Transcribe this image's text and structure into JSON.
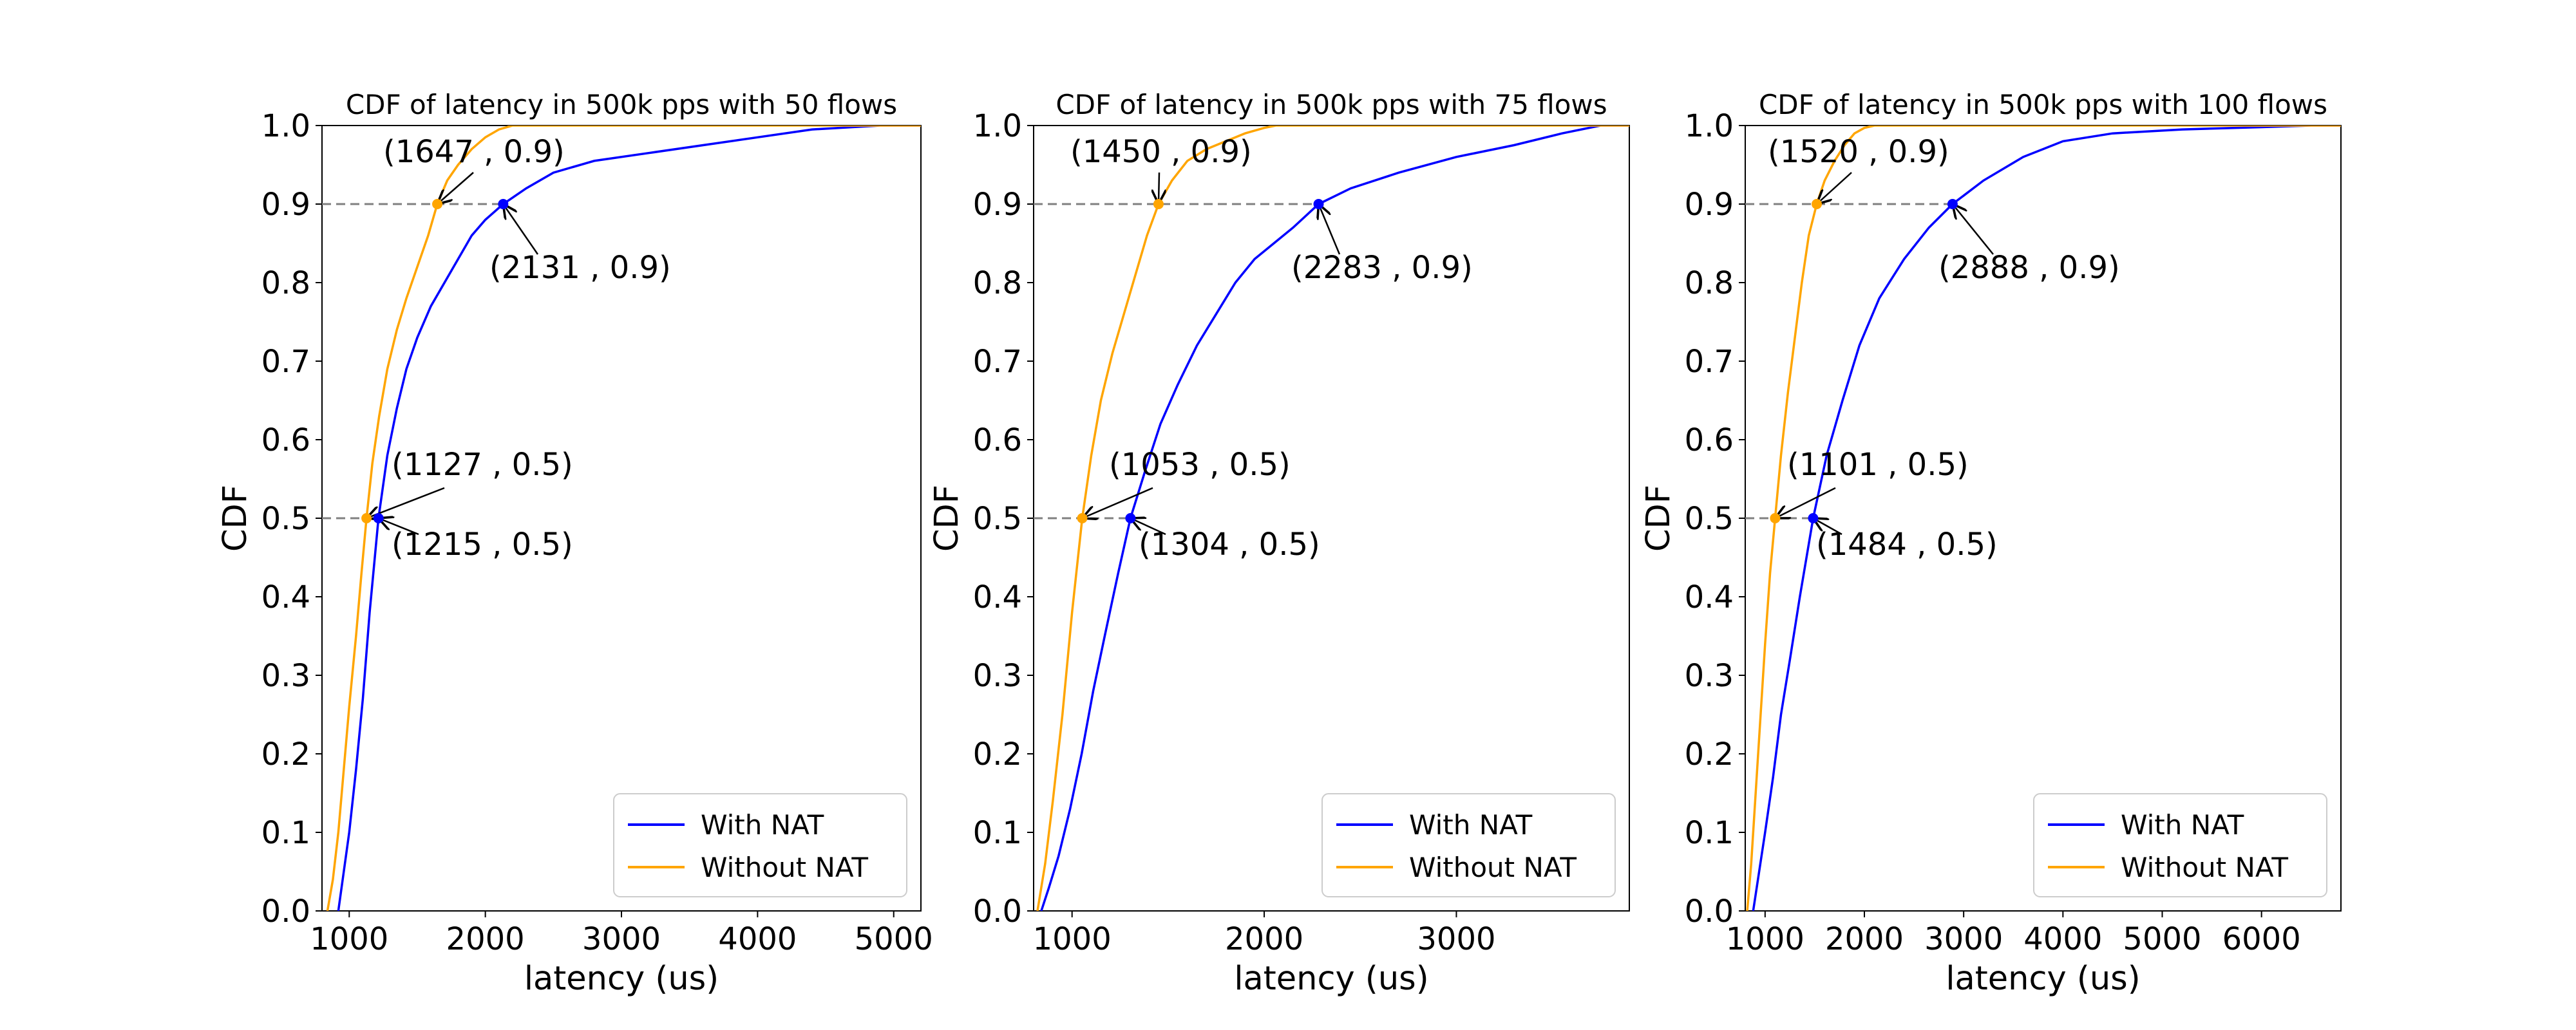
{
  "figure": {
    "background": "#ffffff",
    "colors": {
      "with_nat": "#0000ff",
      "without_nat": "#ffa500",
      "reference_line": "#808080",
      "annotation_arrow": "#000000",
      "axes": "#000000",
      "legend_border": "#cccccc"
    }
  },
  "chart_data": [
    {
      "type": "line",
      "title": "CDF of latency in 500k pps with 50 flows",
      "xlabel": "latency (us)",
      "ylabel": "CDF",
      "xlim": [
        800,
        5200
      ],
      "ylim": [
        0.0,
        1.0
      ],
      "xticks": [
        1000,
        2000,
        3000,
        4000,
        5000
      ],
      "yticks": [
        0.0,
        0.1,
        0.2,
        0.3,
        0.4,
        0.5,
        0.6,
        0.7,
        0.8,
        0.9,
        1.0
      ],
      "grid": false,
      "legend_position": "lower right",
      "reference_lines": [
        {
          "y": 0.5,
          "x_end": 1215
        },
        {
          "y": 0.9,
          "x_end": 2131
        }
      ],
      "series": [
        {
          "name": "With NAT",
          "color": "#0000ff",
          "x": [
            920,
            960,
            1000,
            1050,
            1100,
            1150,
            1215,
            1280,
            1350,
            1420,
            1500,
            1600,
            1700,
            1800,
            1900,
            2000,
            2131,
            2300,
            2500,
            2800,
            3200,
            3600,
            4000,
            4400,
            4900
          ],
          "y": [
            0.0,
            0.05,
            0.1,
            0.18,
            0.27,
            0.38,
            0.5,
            0.58,
            0.64,
            0.69,
            0.73,
            0.77,
            0.8,
            0.83,
            0.86,
            0.88,
            0.9,
            0.92,
            0.94,
            0.955,
            0.965,
            0.975,
            0.985,
            0.995,
            1.0
          ]
        },
        {
          "name": "Without NAT",
          "color": "#ffa500",
          "x": [
            840,
            880,
            920,
            960,
            1000,
            1050,
            1090,
            1127,
            1170,
            1220,
            1280,
            1350,
            1420,
            1500,
            1580,
            1647,
            1720,
            1800,
            1900,
            2000,
            2100,
            2200
          ],
          "y": [
            0.0,
            0.04,
            0.1,
            0.18,
            0.26,
            0.35,
            0.43,
            0.5,
            0.57,
            0.63,
            0.69,
            0.74,
            0.78,
            0.82,
            0.86,
            0.9,
            0.93,
            0.95,
            0.97,
            0.985,
            0.995,
            1.0
          ]
        }
      ],
      "annotations": [
        {
          "text": "(1647 , 0.9)",
          "x": 1647,
          "y": 0.9,
          "color": "#ffa500"
        },
        {
          "text": "(2131 , 0.9)",
          "x": 2131,
          "y": 0.9,
          "color": "#0000ff"
        },
        {
          "text": "(1127 , 0.5)",
          "x": 1127,
          "y": 0.5,
          "color": "#ffa500"
        },
        {
          "text": "(1215 , 0.5)",
          "x": 1215,
          "y": 0.5,
          "color": "#0000ff"
        }
      ]
    },
    {
      "type": "line",
      "title": "CDF of latency in 500k pps with 75 flows",
      "xlabel": "latency (us)",
      "ylabel": "CDF",
      "xlim": [
        800,
        3900
      ],
      "ylim": [
        0.0,
        1.0
      ],
      "xticks": [
        1000,
        2000,
        3000
      ],
      "yticks": [
        0.0,
        0.1,
        0.2,
        0.3,
        0.4,
        0.5,
        0.6,
        0.7,
        0.8,
        0.9,
        1.0
      ],
      "grid": false,
      "legend_position": "lower right",
      "reference_lines": [
        {
          "y": 0.5,
          "x_end": 1304
        },
        {
          "y": 0.9,
          "x_end": 2283
        }
      ],
      "series": [
        {
          "name": "With NAT",
          "color": "#0000ff",
          "x": [
            840,
            880,
            930,
            990,
            1050,
            1110,
            1170,
            1240,
            1304,
            1380,
            1460,
            1550,
            1650,
            1750,
            1850,
            1950,
            2050,
            2150,
            2283,
            2450,
            2700,
            3000,
            3300,
            3550,
            3750
          ],
          "y": [
            0.0,
            0.03,
            0.07,
            0.13,
            0.2,
            0.28,
            0.35,
            0.43,
            0.5,
            0.56,
            0.62,
            0.67,
            0.72,
            0.76,
            0.8,
            0.83,
            0.85,
            0.87,
            0.9,
            0.92,
            0.94,
            0.96,
            0.975,
            0.99,
            1.0
          ]
        },
        {
          "name": "Without NAT",
          "color": "#ffa500",
          "x": [
            820,
            860,
            900,
            950,
            1000,
            1053,
            1100,
            1150,
            1210,
            1270,
            1330,
            1390,
            1450,
            1520,
            1600,
            1700,
            1800,
            1900,
            2000,
            2060
          ],
          "y": [
            0.0,
            0.06,
            0.14,
            0.25,
            0.38,
            0.5,
            0.58,
            0.65,
            0.71,
            0.76,
            0.81,
            0.86,
            0.9,
            0.93,
            0.955,
            0.97,
            0.98,
            0.99,
            0.997,
            1.0
          ]
        }
      ],
      "annotations": [
        {
          "text": "(1450 , 0.9)",
          "x": 1450,
          "y": 0.9,
          "color": "#ffa500"
        },
        {
          "text": "(2283 , 0.9)",
          "x": 2283,
          "y": 0.9,
          "color": "#0000ff"
        },
        {
          "text": "(1053 , 0.5)",
          "x": 1053,
          "y": 0.5,
          "color": "#ffa500"
        },
        {
          "text": "(1304 , 0.5)",
          "x": 1304,
          "y": 0.5,
          "color": "#0000ff"
        }
      ]
    },
    {
      "type": "line",
      "title": "CDF of latency in 500k pps with 100 flows",
      "xlabel": "latency (us)",
      "ylabel": "CDF",
      "xlim": [
        800,
        6800
      ],
      "ylim": [
        0.0,
        1.0
      ],
      "xticks": [
        1000,
        2000,
        3000,
        4000,
        5000,
        6000
      ],
      "yticks": [
        0.0,
        0.1,
        0.2,
        0.3,
        0.4,
        0.5,
        0.6,
        0.7,
        0.8,
        0.9,
        1.0
      ],
      "grid": false,
      "legend_position": "lower right",
      "reference_lines": [
        {
          "y": 0.5,
          "x_end": 1484
        },
        {
          "y": 0.9,
          "x_end": 2888
        }
      ],
      "series": [
        {
          "name": "With NAT",
          "color": "#0000ff",
          "x": [
            880,
            940,
            1000,
            1080,
            1160,
            1250,
            1350,
            1484,
            1620,
            1780,
            1950,
            2150,
            2400,
            2650,
            2888,
            3200,
            3600,
            4000,
            4500,
            5200,
            6000,
            6500
          ],
          "y": [
            0.0,
            0.05,
            0.1,
            0.17,
            0.25,
            0.32,
            0.4,
            0.5,
            0.58,
            0.65,
            0.72,
            0.78,
            0.83,
            0.87,
            0.9,
            0.93,
            0.96,
            0.98,
            0.99,
            0.995,
            0.998,
            1.0
          ]
        },
        {
          "name": "Without NAT",
          "color": "#ffa500",
          "x": [
            820,
            860,
            900,
            950,
            1000,
            1050,
            1101,
            1160,
            1230,
            1300,
            1370,
            1440,
            1520,
            1600,
            1700,
            1800,
            1900,
            2000,
            2100
          ],
          "y": [
            0.0,
            0.06,
            0.14,
            0.24,
            0.34,
            0.43,
            0.5,
            0.58,
            0.66,
            0.73,
            0.8,
            0.86,
            0.9,
            0.93,
            0.955,
            0.975,
            0.99,
            0.997,
            1.0
          ]
        }
      ],
      "annotations": [
        {
          "text": "(1520 , 0.9)",
          "x": 1520,
          "y": 0.9,
          "color": "#ffa500"
        },
        {
          "text": "(2888 , 0.9)",
          "x": 2888,
          "y": 0.9,
          "color": "#0000ff"
        },
        {
          "text": "(1101 , 0.5)",
          "x": 1101,
          "y": 0.5,
          "color": "#ffa500"
        },
        {
          "text": "(1484 , 0.5)",
          "x": 1484,
          "y": 0.5,
          "color": "#0000ff"
        }
      ]
    }
  ]
}
